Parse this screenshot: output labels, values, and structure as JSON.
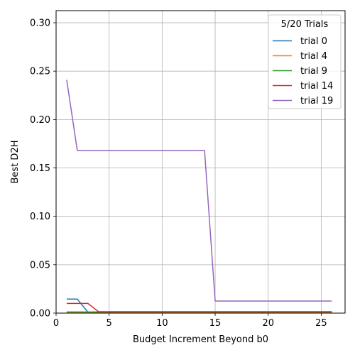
{
  "chart_data": {
    "type": "line",
    "xlabel": "Budget Increment Beyond b0",
    "ylabel": "Best D2H",
    "xlim": [
      0,
      27.25
    ],
    "ylim": [
      0,
      0.3125
    ],
    "xticks": [
      0,
      5,
      10,
      15,
      20,
      25
    ],
    "yticks": [
      0.0,
      0.05,
      0.1,
      0.15,
      0.2,
      0.25,
      0.3
    ],
    "grid": true,
    "legend": {
      "title": "5/20 Trials",
      "position": "top-right"
    },
    "series": [
      {
        "name": "trial 0",
        "color": "#1f77b4",
        "x": [
          1,
          2,
          3,
          4,
          5,
          6,
          7,
          8,
          9,
          10,
          11,
          12,
          13,
          14,
          15,
          16,
          17,
          18,
          19,
          20,
          21,
          22,
          23,
          24,
          25,
          26
        ],
        "y": [
          0.0145,
          0.0145,
          0.001,
          0.001,
          0.001,
          0.001,
          0.001,
          0.001,
          0.001,
          0.001,
          0.001,
          0.001,
          0.001,
          0.001,
          0.001,
          0.001,
          0.001,
          0.001,
          0.001,
          0.001,
          0.001,
          0.001,
          0.001,
          0.001,
          0.001,
          0.001
        ]
      },
      {
        "name": "trial 4",
        "color": "#ff7f0e",
        "x": [
          1,
          2,
          3,
          4,
          5,
          6,
          7,
          8,
          9,
          10,
          11,
          12,
          13,
          14,
          15,
          16,
          17,
          18,
          19,
          20,
          21,
          22,
          23,
          24,
          25,
          26
        ],
        "y": [
          0.001,
          0.001,
          0.001,
          0.001,
          0.001,
          0.001,
          0.001,
          0.001,
          0.001,
          0.001,
          0.001,
          0.001,
          0.001,
          0.001,
          0.001,
          0.001,
          0.001,
          0.001,
          0.001,
          0.001,
          0.001,
          0.001,
          0.001,
          0.001,
          0.001,
          0.001
        ]
      },
      {
        "name": "trial 9",
        "color": "#2ca02c",
        "x": [
          1,
          2,
          3,
          4,
          5,
          6,
          7,
          8,
          9,
          10,
          11,
          12,
          13,
          14,
          15,
          16,
          17,
          18,
          19,
          20,
          21,
          22,
          23,
          24,
          25,
          26
        ],
        "y": [
          0.0012,
          0.0012,
          0.0012,
          0.0012,
          0.0012,
          0.0012,
          0.0012,
          0.0012,
          0.0012,
          0.0012,
          0.0012,
          0.0012,
          0.0012,
          0.0012,
          0.0012,
          0.0012,
          0.0012,
          0.0012,
          0.0012,
          0.0012,
          0.0012,
          0.0012,
          0.0012,
          0.0012,
          0.0012,
          0.0012
        ]
      },
      {
        "name": "trial 14",
        "color": "#d62728",
        "x": [
          1,
          2,
          3,
          4,
          5,
          6,
          7,
          8,
          9,
          10,
          11,
          12,
          13,
          14,
          15,
          16,
          17,
          18,
          19,
          20,
          21,
          22,
          23,
          24,
          25,
          26
        ],
        "y": [
          0.01,
          0.01,
          0.01,
          0.0015,
          0.0015,
          0.0015,
          0.0015,
          0.0015,
          0.0015,
          0.0015,
          0.0015,
          0.0015,
          0.0015,
          0.0015,
          0.0015,
          0.0015,
          0.0015,
          0.0015,
          0.0015,
          0.0015,
          0.0015,
          0.0015,
          0.0015,
          0.0015,
          0.0015,
          0.0015
        ]
      },
      {
        "name": "trial 19",
        "color": "#9467bd",
        "x": [
          1,
          2,
          3,
          4,
          5,
          6,
          7,
          8,
          9,
          10,
          11,
          12,
          13,
          14,
          15,
          16,
          17,
          18,
          19,
          20,
          21,
          22,
          23,
          24,
          25,
          26
        ],
        "y": [
          0.241,
          0.168,
          0.168,
          0.168,
          0.168,
          0.168,
          0.168,
          0.168,
          0.168,
          0.168,
          0.168,
          0.168,
          0.168,
          0.168,
          0.0125,
          0.0125,
          0.0125,
          0.0125,
          0.0125,
          0.0125,
          0.0125,
          0.0125,
          0.0125,
          0.0125,
          0.0125,
          0.0125
        ]
      }
    ]
  }
}
